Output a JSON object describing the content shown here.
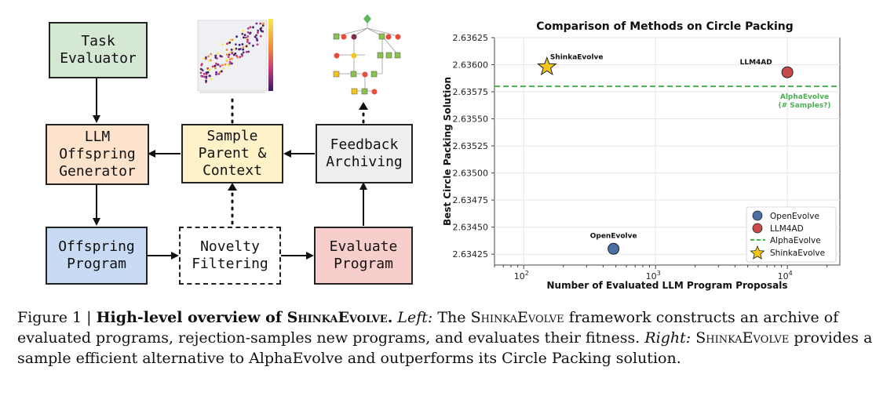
{
  "diagram": {
    "boxes": {
      "task_evaluator": "Task\nEvaluator",
      "llm_offspring_generator": "LLM\nOffspring\nGenerator",
      "sample_parent_context": "Sample\nParent &\nContext",
      "feedback_archiving": "Feedback\nArchiving",
      "offspring_program": "Offspring\nProgram",
      "novelty_filtering": "Novelty\nFiltering",
      "evaluate_program": "Evaluate\nProgram"
    },
    "colors": {
      "task_evaluator": "#d5e8d4",
      "llm_offspring_generator": "#fde3cc",
      "sample_parent_context": "#fff2c9",
      "feedback_archiving": "#eeeeee",
      "offspring_program": "#c9daf5",
      "novelty_filtering": "#ffffff",
      "evaluate_program": "#f8cecc"
    }
  },
  "chart_data": {
    "type": "scatter",
    "title": "Comparison of Methods on Circle Packing",
    "xlabel": "Number of Evaluated LLM Program Proposals",
    "ylabel": "Best Circle Packing Solution",
    "xscale": "log",
    "xlim": [
      60,
      25000
    ],
    "ylim": [
      2.63415,
      2.63625
    ],
    "yticks": [
      "2.63625",
      "2.63600",
      "2.63575",
      "2.63550",
      "2.63525",
      "2.63500",
      "2.63475",
      "2.63450",
      "2.63425"
    ],
    "ytick_values": [
      2.63625,
      2.636,
      2.63575,
      2.6355,
      2.63525,
      2.635,
      2.63475,
      2.6345,
      2.63425
    ],
    "xticks": [
      {
        "base": "10",
        "exp": "2",
        "value": 100
      },
      {
        "base": "10",
        "exp": "3",
        "value": 1000
      },
      {
        "base": "10",
        "exp": "4",
        "value": 10000
      }
    ],
    "points": [
      {
        "name": "ShinkaEvolve",
        "x": 150,
        "y": 2.63598,
        "marker": "star",
        "color": "#f5c518"
      },
      {
        "name": "LLM4AD",
        "x": 10000,
        "y": 2.63593,
        "marker": "circle",
        "color": "#c94a4a"
      },
      {
        "name": "OpenEvolve",
        "x": 480,
        "y": 2.6343,
        "marker": "circle",
        "color": "#4a6fa5"
      }
    ],
    "hline": {
      "name": "AlphaEvolve",
      "y": 2.6358,
      "color": "#4caf50",
      "annotation_line1": "AlphaEvolve",
      "annotation_line2": "(# Samples?)"
    },
    "legend": [
      "OpenEvolve",
      "LLM4AD",
      "AlphaEvolve",
      "ShinkaEvolve"
    ],
    "legend_position": "bottom-right"
  },
  "caption": {
    "figure_label": "Figure 1 | ",
    "bold_prefix": "High-level overview of ",
    "bold_name": "ShinkaEvolve",
    "bold_suffix": ".",
    "left_label": "Left:",
    "text_a": " The ",
    "name_a": "ShinkaEvolve",
    "text_b": " framework constructs an archive of evaluated programs, rejection-samples new programs, and evaluates their fitness. ",
    "right_label": "Right:",
    "name_b": "ShinkaEvolve",
    "text_c": " provides a sample efficient alternative to AlphaEvolve and outperforms its Circle Packing solution."
  }
}
